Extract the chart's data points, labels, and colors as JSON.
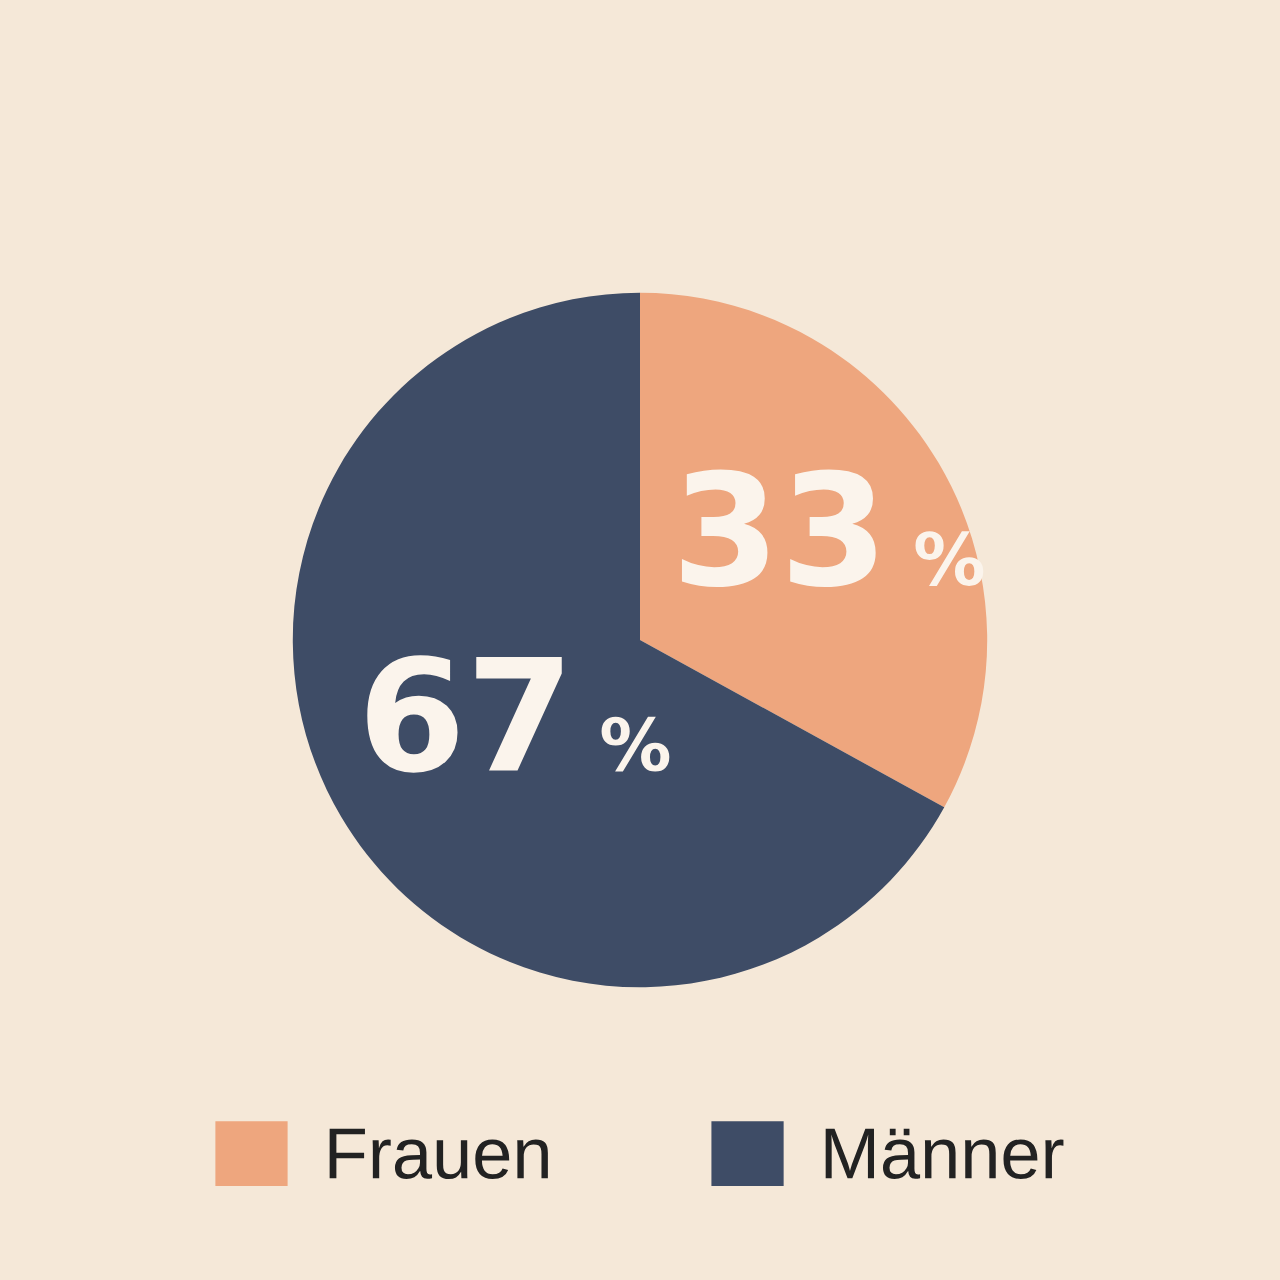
{
  "chart_data": {
    "type": "pie",
    "categories": [
      "Frauen",
      "Männer"
    ],
    "values": [
      33,
      67
    ],
    "colors": [
      "#eea67e",
      "#3e4c66"
    ],
    "value_labels": [
      "33 %",
      "67 %"
    ],
    "legend": "bottom"
  }
}
